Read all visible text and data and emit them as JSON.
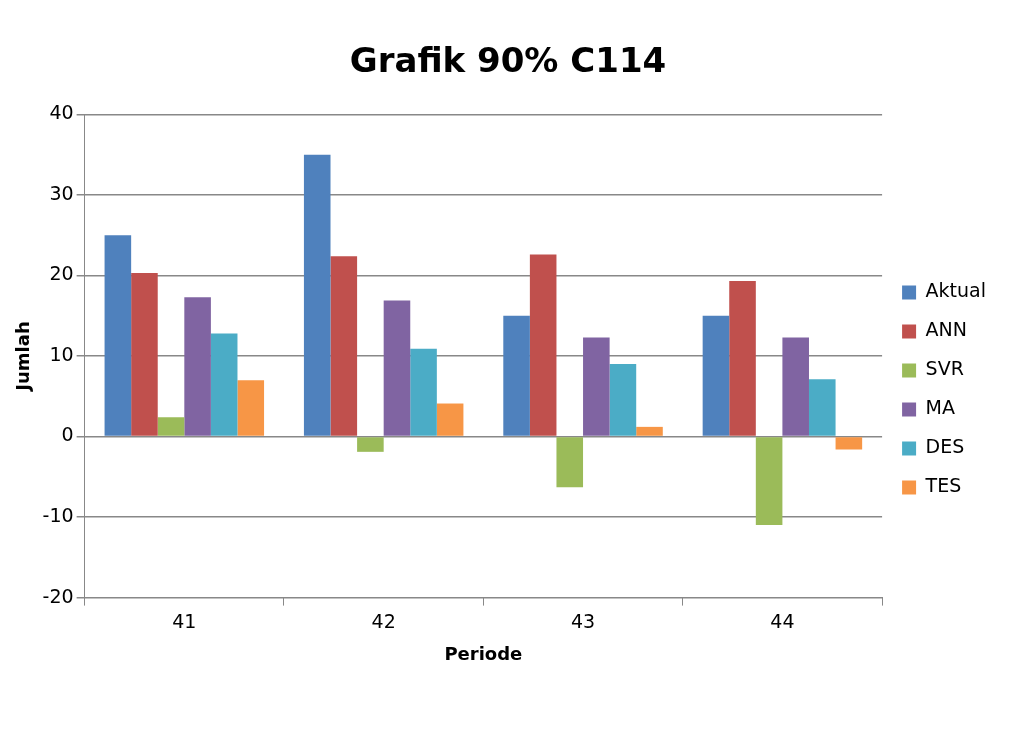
{
  "chart_data": {
    "type": "bar",
    "title": "Grafik 90% C114",
    "xlabel": "Periode",
    "ylabel": "Jumlah",
    "categories": [
      "41",
      "42",
      "43",
      "44"
    ],
    "series": [
      {
        "name": "Aktual",
        "color": "#4f81bd",
        "values": [
          25,
          35,
          15,
          15
        ]
      },
      {
        "name": "ANN",
        "color": "#c0504d",
        "values": [
          20.3,
          22.4,
          22.6,
          19.3
        ]
      },
      {
        "name": "SVR",
        "color": "#9bbb59",
        "values": [
          2.4,
          -1.9,
          -6.3,
          -11
        ]
      },
      {
        "name": "MA",
        "color": "#8064a2",
        "values": [
          17.3,
          16.9,
          12.3,
          12.3
        ]
      },
      {
        "name": "DES",
        "color": "#4bacc6",
        "values": [
          12.8,
          10.9,
          9,
          7.1
        ]
      },
      {
        "name": "TES",
        "color": "#f79646",
        "values": [
          7,
          4.1,
          1.2,
          -1.6
        ]
      }
    ],
    "ylim": [
      -20,
      40
    ],
    "yticks": [
      -20,
      -10,
      0,
      10,
      20,
      30,
      40
    ],
    "grid": "y",
    "legend": "right"
  }
}
